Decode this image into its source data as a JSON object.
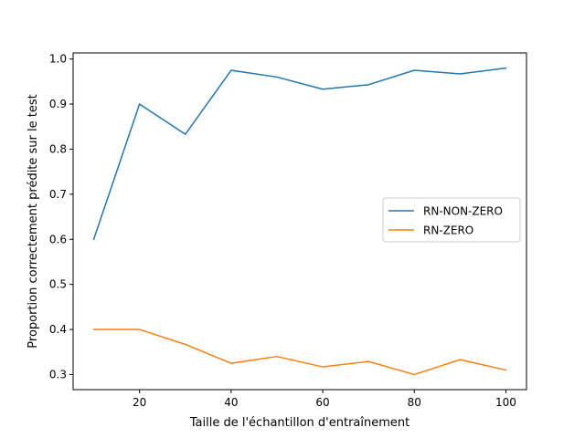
{
  "chart_data": {
    "type": "line",
    "title": "",
    "xlabel": "Taille de l'échantillon d'entraînement",
    "ylabel": "Proportion correctement prédite sur le test",
    "x": [
      10,
      20,
      30,
      40,
      50,
      60,
      70,
      80,
      90,
      100
    ],
    "xlim": [
      5.5,
      104.5
    ],
    "ylim": [
      0.2665,
      1.0135
    ],
    "xticks": [
      20,
      40,
      60,
      80,
      100
    ],
    "yticks": [
      0.3,
      0.4,
      0.5,
      0.6,
      0.7,
      0.8,
      0.9,
      1.0
    ],
    "xtick_labels": [
      "20",
      "40",
      "60",
      "80",
      "100"
    ],
    "ytick_labels": [
      "0.3",
      "0.4",
      "0.5",
      "0.6",
      "0.7",
      "0.8",
      "0.9",
      "1.0"
    ],
    "grid": false,
    "legend_position": "center-right",
    "series": [
      {
        "name": "RN-NON-ZERO",
        "color": "#1f77b4",
        "values": [
          0.6,
          0.9,
          0.833,
          0.975,
          0.96,
          0.933,
          0.943,
          0.975,
          0.967,
          0.98
        ]
      },
      {
        "name": "RN-ZERO",
        "color": "#ff7f0e",
        "values": [
          0.4,
          0.4,
          0.367,
          0.325,
          0.34,
          0.317,
          0.329,
          0.3,
          0.333,
          0.31
        ]
      }
    ]
  }
}
